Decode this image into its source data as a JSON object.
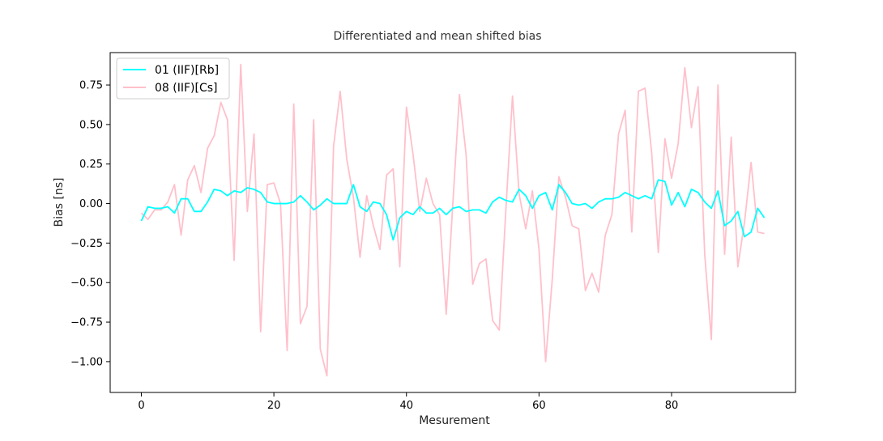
{
  "chart_data": {
    "type": "line",
    "title": "Differentiated and mean shifted bias",
    "xlabel": "Mesurement",
    "ylabel": "Bias [ns]",
    "xlim": [
      -4.7,
      98.7
    ],
    "ylim": [
      -1.195,
      0.955
    ],
    "xticks": [
      0,
      20,
      40,
      60,
      80
    ],
    "yticks": [
      -1.0,
      -0.75,
      -0.5,
      -0.25,
      0.0,
      0.25,
      0.5,
      0.75
    ],
    "ytick_labels": [
      "−1.00",
      "−0.75",
      "−0.50",
      "−0.25",
      "0.00",
      "0.25",
      "0.50",
      "0.75"
    ],
    "grid": false,
    "legend_position": "top-left",
    "x": [
      0,
      1,
      2,
      3,
      4,
      5,
      6,
      7,
      8,
      9,
      10,
      11,
      12,
      13,
      14,
      15,
      16,
      17,
      18,
      19,
      20,
      21,
      22,
      23,
      24,
      25,
      26,
      27,
      28,
      29,
      30,
      31,
      32,
      33,
      34,
      35,
      36,
      37,
      38,
      39,
      40,
      41,
      42,
      43,
      44,
      45,
      46,
      47,
      48,
      49,
      50,
      51,
      52,
      53,
      54,
      55,
      56,
      57,
      58,
      59,
      60,
      61,
      62,
      63,
      64,
      65,
      66,
      67,
      68,
      69,
      70,
      71,
      72,
      73,
      74,
      75,
      76,
      77,
      78,
      79,
      80,
      81,
      82,
      83,
      84,
      85,
      86,
      87,
      88,
      89,
      90,
      91,
      92,
      93,
      94
    ],
    "series": [
      {
        "name": "01 (IIF)[Rb]",
        "color": "#00ffff",
        "values": [
          -0.11,
          -0.02,
          -0.03,
          -0.03,
          -0.02,
          -0.06,
          0.03,
          0.03,
          -0.05,
          -0.05,
          0.01,
          0.09,
          0.08,
          0.05,
          0.08,
          0.07,
          0.1,
          0.09,
          0.07,
          0.01,
          0.0,
          0.0,
          0.0,
          0.01,
          0.05,
          0.01,
          -0.04,
          -0.01,
          0.03,
          0.0,
          0.0,
          0.0,
          0.12,
          -0.02,
          -0.05,
          0.01,
          0.0,
          -0.07,
          -0.23,
          -0.09,
          -0.05,
          -0.07,
          -0.02,
          -0.06,
          -0.06,
          -0.03,
          -0.07,
          -0.03,
          -0.02,
          -0.05,
          -0.04,
          -0.04,
          -0.06,
          0.01,
          0.04,
          0.02,
          0.01,
          0.09,
          0.05,
          -0.03,
          0.05,
          0.07,
          -0.04,
          0.12,
          0.07,
          0.0,
          -0.01,
          0.0,
          -0.03,
          0.01,
          0.03,
          0.03,
          0.04,
          0.07,
          0.05,
          0.03,
          0.05,
          0.03,
          0.15,
          0.14,
          -0.01,
          0.07,
          -0.02,
          0.09,
          0.07,
          0.01,
          -0.03,
          0.08,
          -0.14,
          -0.11,
          -0.05,
          -0.21,
          -0.18,
          -0.03,
          -0.09
        ]
      },
      {
        "name": "08 (IIF)[Cs]",
        "color": "#ffc0cb",
        "values": [
          -0.06,
          -0.1,
          -0.04,
          -0.04,
          0.01,
          0.12,
          -0.2,
          0.15,
          0.24,
          0.07,
          0.35,
          0.43,
          0.64,
          0.53,
          -0.36,
          0.88,
          -0.05,
          0.44,
          -0.81,
          0.12,
          0.13,
          0.0,
          -0.93,
          0.63,
          -0.76,
          -0.65,
          0.53,
          -0.92,
          -1.09,
          0.36,
          0.71,
          0.28,
          0.04,
          -0.34,
          0.05,
          -0.14,
          -0.29,
          0.18,
          0.22,
          -0.4,
          0.61,
          0.31,
          -0.05,
          0.16,
          0.0,
          -0.07,
          -0.7,
          0.0,
          0.69,
          0.31,
          -0.51,
          -0.38,
          -0.35,
          -0.74,
          -0.8,
          -0.04,
          0.68,
          0.06,
          -0.16,
          0.08,
          -0.29,
          -1.0,
          -0.48,
          0.17,
          0.04,
          -0.14,
          -0.16,
          -0.55,
          -0.44,
          -0.56,
          -0.2,
          -0.07,
          0.44,
          0.59,
          -0.18,
          0.71,
          0.73,
          0.32,
          -0.31,
          0.41,
          0.16,
          0.38,
          0.86,
          0.48,
          0.74,
          -0.32,
          -0.86,
          0.75,
          -0.32,
          0.42,
          -0.4,
          -0.12,
          0.26,
          -0.18,
          -0.19
        ]
      }
    ]
  }
}
